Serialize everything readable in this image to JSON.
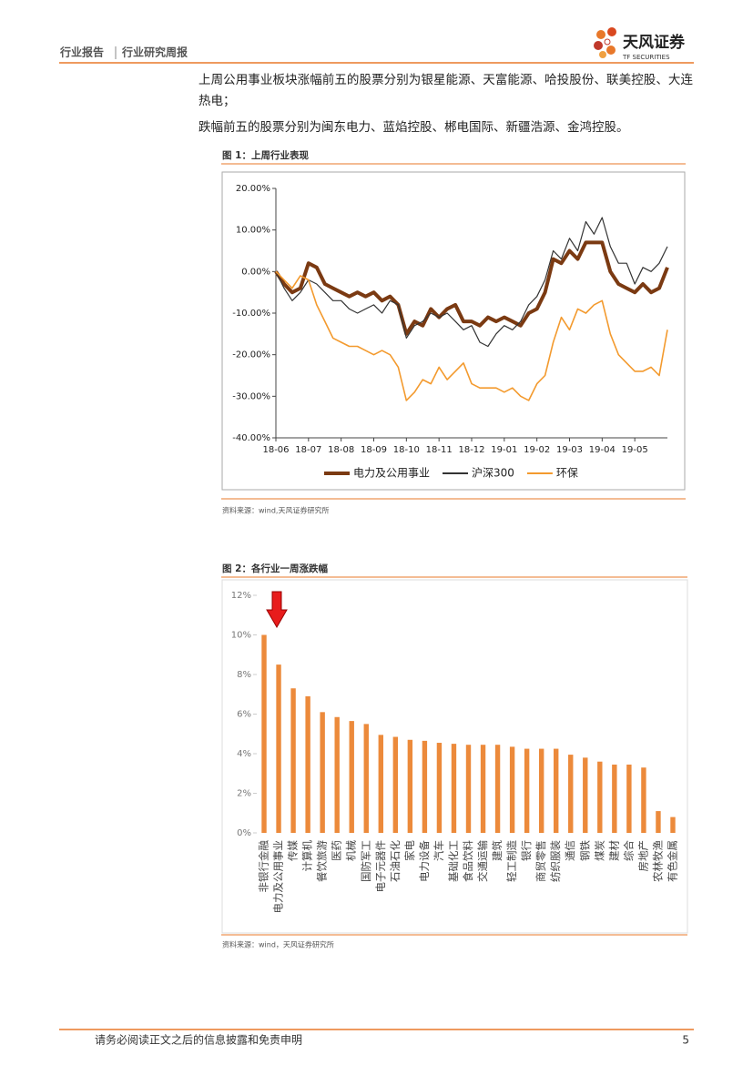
{
  "header": {
    "section": "行业报告",
    "subsection": "行业研究周报",
    "logo_name": "天风证券",
    "logo_en": "TF SECURITIES"
  },
  "paragraphs": [
    "上周公用事业板块涨幅前五的股票分别为银星能源、天富能源、哈投股份、联美控股、大连热电；",
    "跌幅前五的股票分别为闽东电力、蓝焰控股、郴电国际、新疆浩源、金鸿控股。"
  ],
  "figures": [
    {
      "title": "图 1：上周行业表现",
      "source": "资料来源：wind,天风证券研究所"
    },
    {
      "title": "图 2：各行业一周涨跌幅",
      "source": "资料来源：wind，天风证券研究所"
    }
  ],
  "chart_data": [
    {
      "type": "line",
      "legend": "bottom",
      "categories": [
        "18-06",
        null,
        null,
        null,
        "18-07",
        null,
        null,
        null,
        "18-08",
        null,
        null,
        null,
        "18-09",
        null,
        null,
        null,
        "18-10",
        null,
        null,
        null,
        "18-11",
        null,
        null,
        null,
        "18-12",
        null,
        null,
        null,
        "19-01",
        null,
        null,
        null,
        "19-02",
        null,
        null,
        null,
        "19-03",
        null,
        null,
        null,
        "19-04",
        null,
        null,
        null,
        "19-05",
        null,
        null,
        null,
        null
      ],
      "ylim": [
        -40,
        20
      ],
      "yticks": [
        {
          "value": -40,
          "label": "-40.00%"
        },
        {
          "value": -30,
          "label": "-30.00%"
        },
        {
          "value": -20,
          "label": "-20.00%"
        },
        {
          "value": -10,
          "label": "-10.00%"
        },
        {
          "value": 0,
          "label": "0.00%"
        },
        {
          "value": 10,
          "label": "10.00%"
        },
        {
          "value": 20,
          "label": "20.00%"
        }
      ],
      "series": [
        {
          "name": "电力及公用事业",
          "color": "#7b3a12",
          "values": [
            0,
            -3,
            -5,
            -4,
            2,
            1,
            -3,
            -4,
            -5,
            -6,
            -5,
            -6,
            -5,
            -7,
            -6,
            -8,
            -15,
            -12,
            -13,
            -9,
            -11,
            -9,
            -8,
            -12,
            -12,
            -13,
            -11,
            -12,
            -11,
            -12,
            -13,
            -10,
            -9,
            -5,
            3,
            2,
            5,
            3,
            7,
            7,
            7,
            0,
            -3,
            -4,
            -5,
            -3,
            -5,
            -4,
            1
          ]
        },
        {
          "name": "沪深300",
          "color": "#333333",
          "values": [
            0,
            -4,
            -7,
            -5,
            -2,
            -3,
            -5,
            -7,
            -7,
            -9,
            -10,
            -9,
            -8,
            -10,
            -7,
            -8,
            -16,
            -13,
            -12,
            -10,
            -11,
            -10,
            -12,
            -14,
            -13,
            -17,
            -18,
            -15,
            -13,
            -14,
            -12,
            -8,
            -6,
            -2,
            5,
            3,
            8,
            5,
            12,
            9,
            13,
            6,
            2,
            2,
            -3,
            1,
            0,
            2,
            6
          ]
        },
        {
          "name": "环保",
          "color": "#f39a2e",
          "values": [
            0,
            -2,
            -4,
            -1,
            -2,
            -8,
            -12,
            -16,
            -17,
            -18,
            -18,
            -19,
            -20,
            -19,
            -20,
            -23,
            -31,
            -29,
            -26,
            -27,
            -23,
            -26,
            -24,
            -22,
            -27,
            -28,
            -28,
            -28,
            -29,
            -28,
            -30,
            -31,
            -27,
            -25,
            -17,
            -11,
            -14,
            -9,
            -10,
            -8,
            -7,
            -15,
            -20,
            -22,
            -24,
            -24,
            -23,
            -25,
            -14
          ]
        }
      ]
    },
    {
      "type": "bar",
      "color": "#ec8a3b",
      "categories": [
        "非银行金融",
        "电力及公用事业",
        "传媒",
        "计算机",
        "餐饮旅游",
        "医药",
        "机械",
        "国防军工",
        "电子元器件",
        "石油石化",
        "家电",
        "电力设备",
        "汽车",
        "基础化工",
        "食品饮料",
        "交通运输",
        "建筑",
        "轻工制造",
        "银行",
        "商贸零售",
        "纺织服装",
        "通信",
        "钢铁",
        "煤炭",
        "建材",
        "综合",
        "房地产",
        "农林牧渔",
        "有色金属"
      ],
      "values": [
        10.0,
        8.5,
        7.3,
        6.9,
        6.1,
        5.85,
        5.65,
        5.5,
        4.95,
        4.85,
        4.7,
        4.65,
        4.55,
        4.5,
        4.45,
        4.45,
        4.45,
        4.35,
        4.25,
        4.25,
        4.25,
        3.95,
        3.8,
        3.6,
        3.45,
        3.45,
        3.3,
        1.1,
        0.8
      ],
      "ylim": [
        0,
        12
      ],
      "yticks": [
        {
          "value": 0,
          "label": "0%"
        },
        {
          "value": 2,
          "label": "2%"
        },
        {
          "value": 4,
          "label": "4%"
        },
        {
          "value": 6,
          "label": "6%"
        },
        {
          "value": 8,
          "label": "8%"
        },
        {
          "value": 10,
          "label": "10%"
        },
        {
          "value": 12,
          "label": "12%"
        }
      ]
    }
  ],
  "footer": {
    "disclaimer": "请务必阅读正文之后的信息披露和免责申明",
    "page": "5"
  }
}
